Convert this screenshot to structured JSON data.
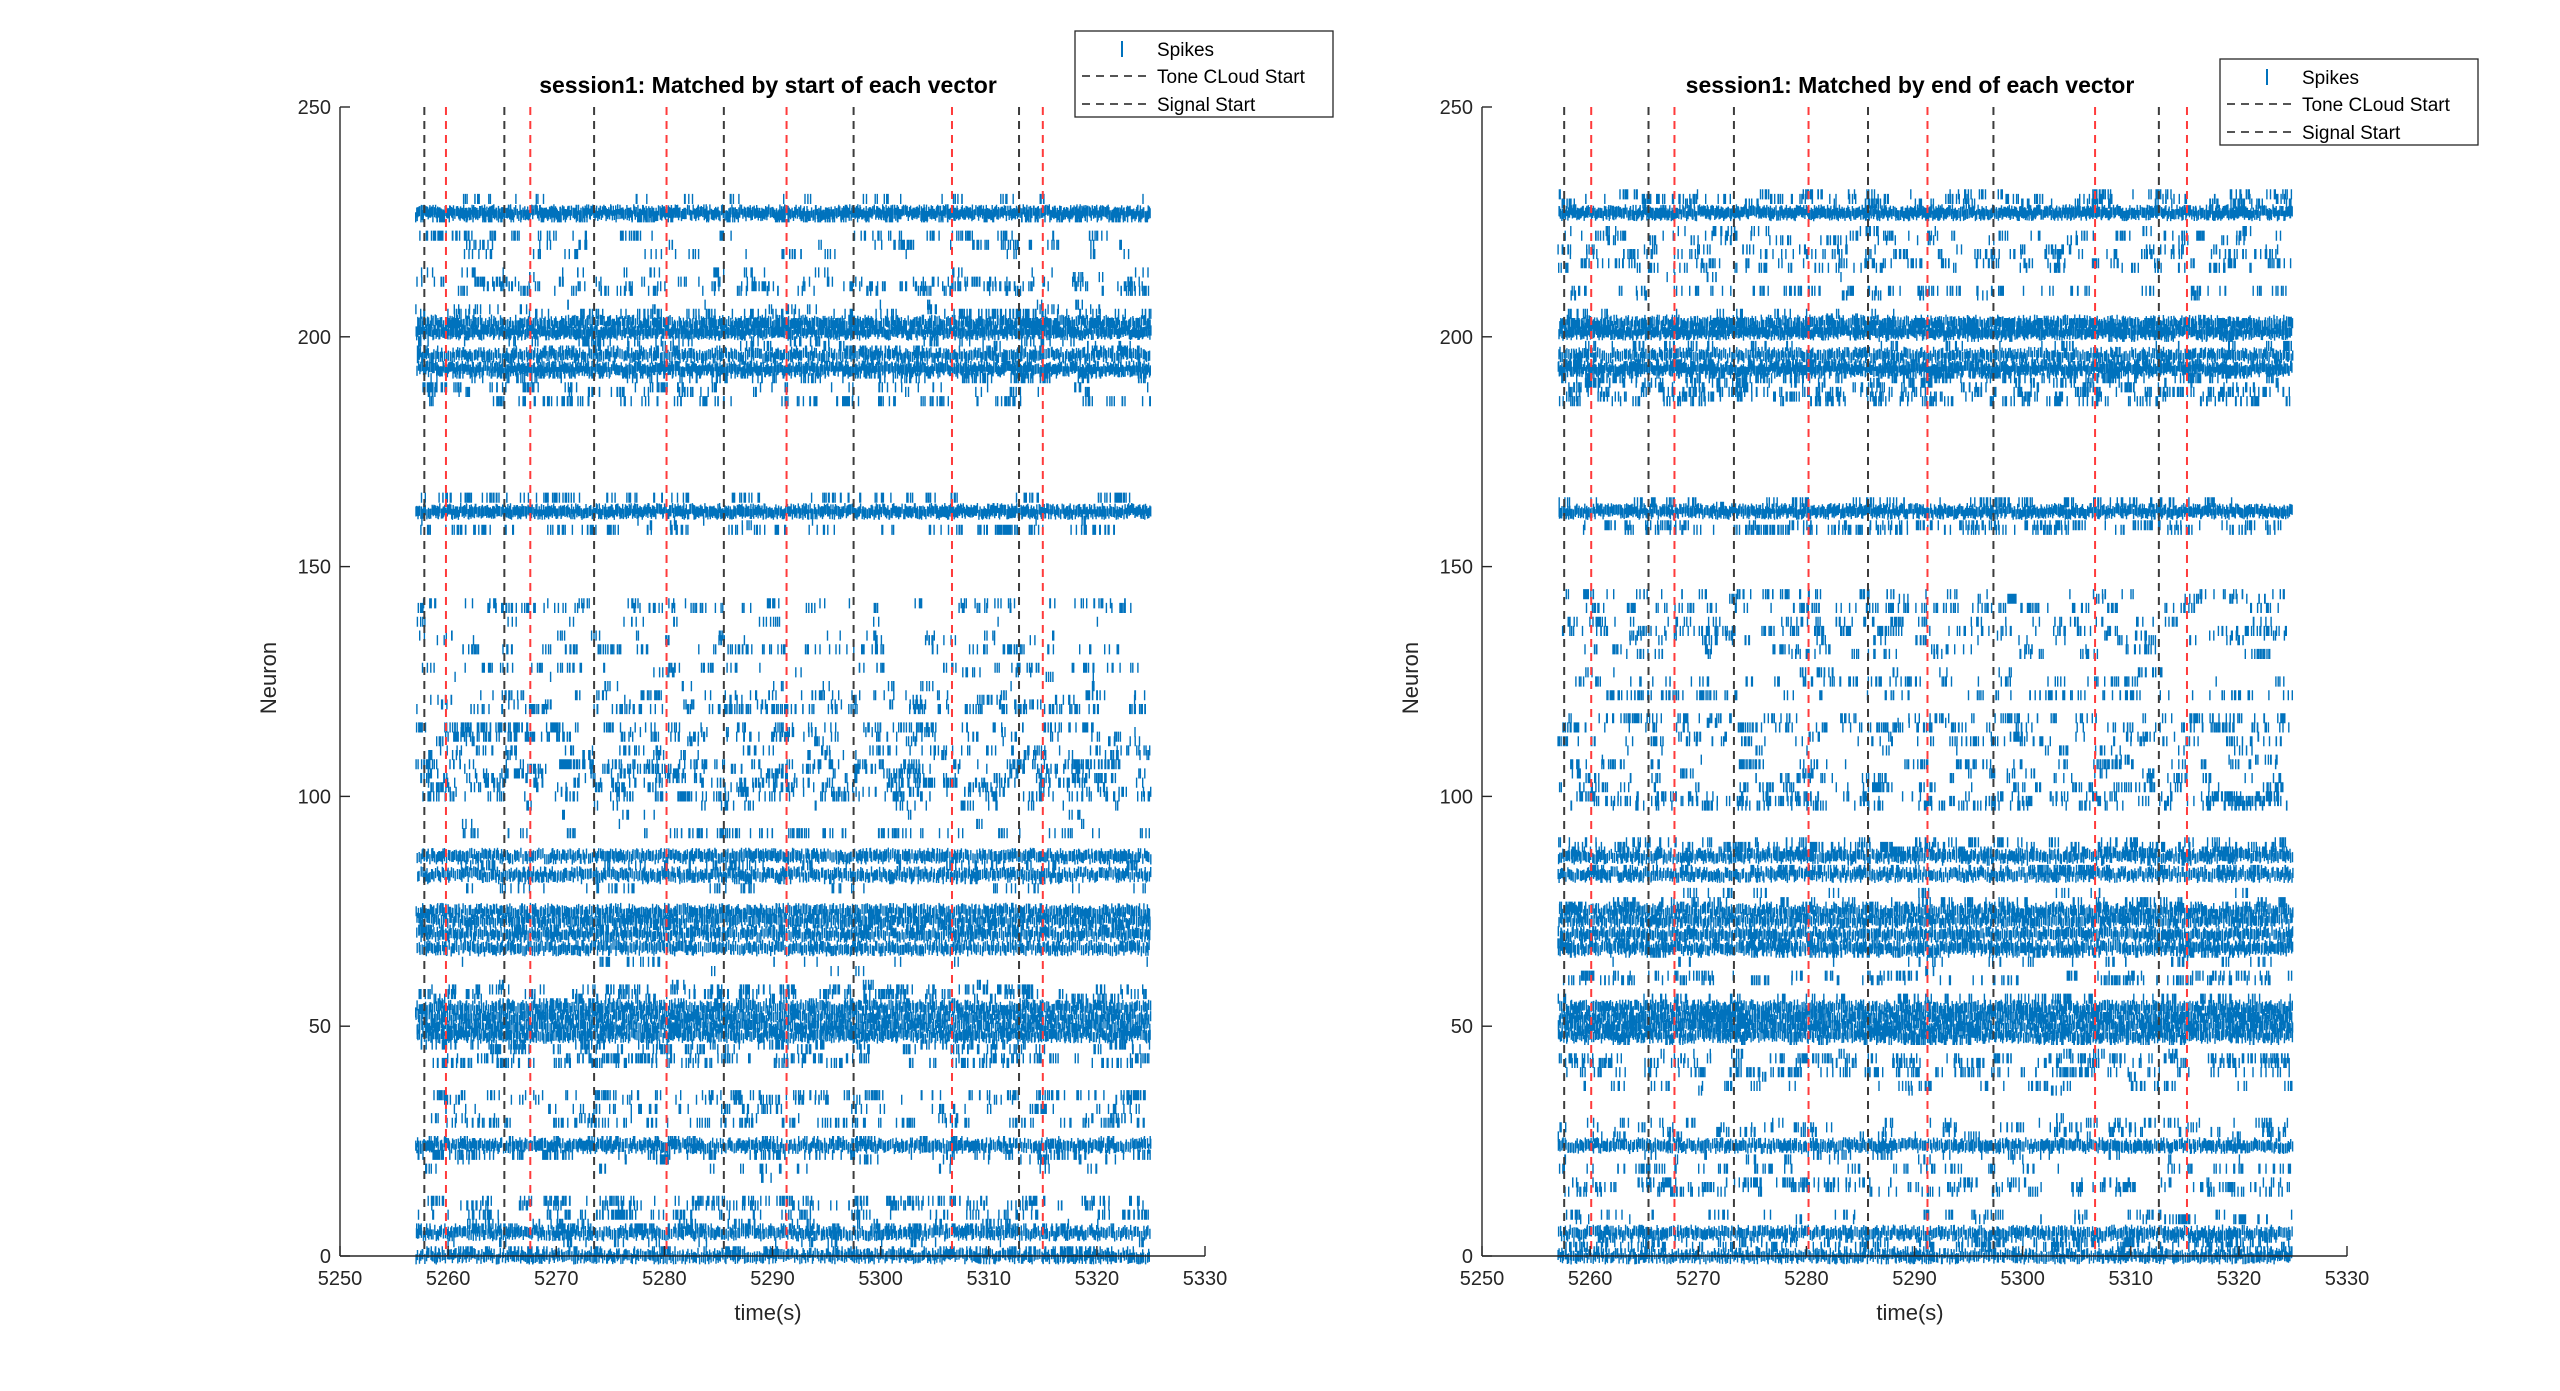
{
  "chart_data": [
    {
      "type": "raster",
      "title": "session1: Matched by start of each vector",
      "xlabel": "time(s)",
      "ylabel": "Neuron",
      "xlim": [
        5250,
        5330
      ],
      "ylim": [
        0,
        250
      ],
      "xticks": [
        5250,
        5260,
        5270,
        5280,
        5290,
        5300,
        5310,
        5320,
        5330
      ],
      "yticks": [
        0,
        50,
        100,
        150,
        200,
        250
      ],
      "spike_time_range": [
        5257,
        5325
      ],
      "legend": {
        "placement": "top-right",
        "entries": [
          {
            "label": "Spikes",
            "marker": "|",
            "color": "#0072BD"
          },
          {
            "label": "Tone CLoud Start",
            "style": "dashed",
            "color": "#555555"
          },
          {
            "label": "Signal Start",
            "style": "dashed",
            "color": "#555555"
          }
        ]
      },
      "tone_cloud_start_times": [
        5257.8,
        5265.2,
        5273.5,
        5285.5,
        5297.5,
        5312.8
      ],
      "signal_start_times": [
        5259.8,
        5267.6,
        5280.2,
        5291.3,
        5306.6,
        5315.0
      ],
      "dense_rows": [
        0,
        5,
        24,
        48,
        50,
        52,
        54,
        67,
        70,
        73,
        75,
        83,
        87,
        162,
        193,
        196,
        201,
        203,
        227
      ]
    },
    {
      "type": "raster",
      "title": "session1: Matched by end of each vector",
      "xlabel": "time(s)",
      "ylabel": "Neuron",
      "xlim": [
        5250,
        5330
      ],
      "ylim": [
        0,
        250
      ],
      "xticks": [
        5250,
        5260,
        5270,
        5280,
        5290,
        5300,
        5310,
        5320,
        5330
      ],
      "yticks": [
        0,
        50,
        100,
        150,
        200,
        250
      ],
      "spike_time_range": [
        5257,
        5325
      ],
      "legend": {
        "placement": "top-right",
        "entries": [
          {
            "label": "Spikes",
            "marker": "|",
            "color": "#0072BD"
          },
          {
            "label": "Tone CLoud Start",
            "style": "dashed",
            "color": "#555555"
          },
          {
            "label": "Signal Start",
            "style": "dashed",
            "color": "#555555"
          }
        ]
      },
      "tone_cloud_start_times": [
        5257.6,
        5265.4,
        5273.3,
        5285.7,
        5297.3,
        5312.6
      ],
      "signal_start_times": [
        5260.1,
        5267.8,
        5280.2,
        5291.2,
        5306.7,
        5315.2
      ],
      "dense_rows": [
        0,
        5,
        24,
        48,
        50,
        52,
        54,
        67,
        70,
        73,
        75,
        83,
        87,
        162,
        193,
        196,
        201,
        203,
        227
      ]
    }
  ],
  "colors": {
    "spike": "#0072BD",
    "tone_cloud_line": "#3c3c3c",
    "signal_line": "#ff3b3b",
    "axis": "#262626"
  }
}
